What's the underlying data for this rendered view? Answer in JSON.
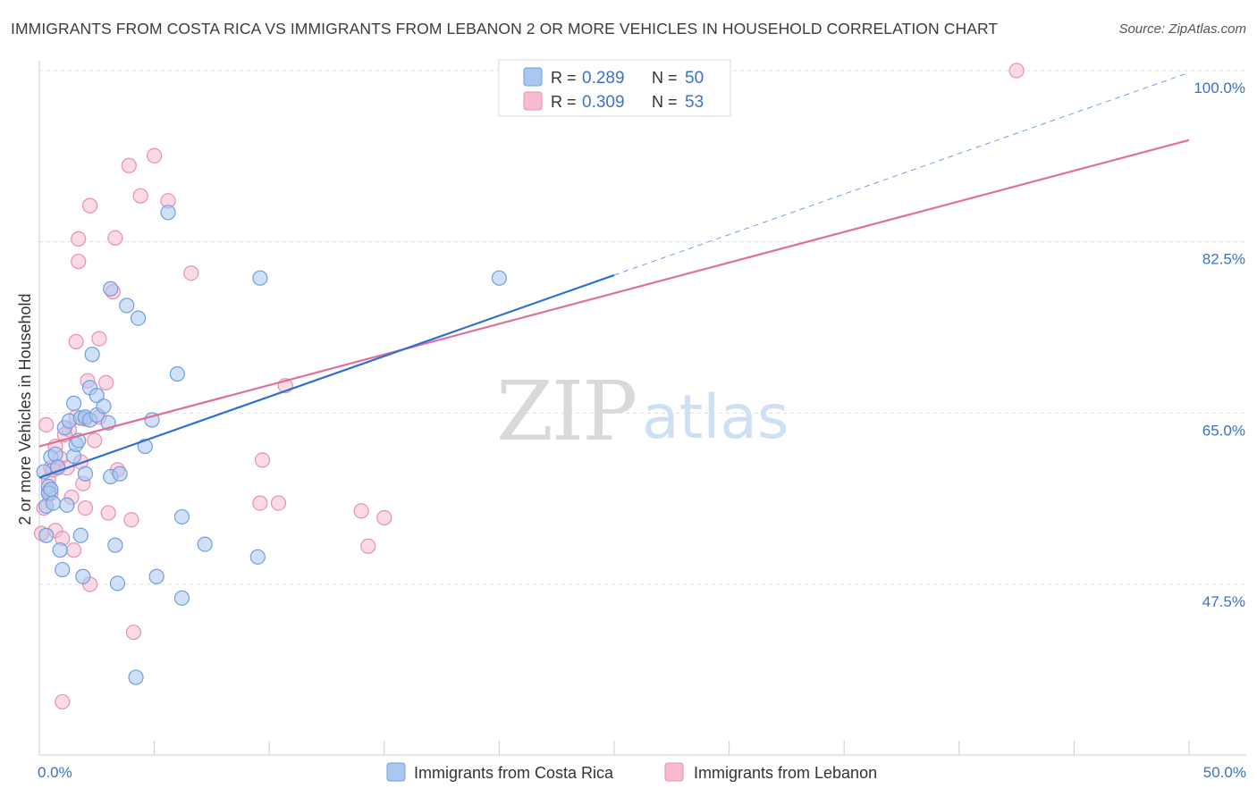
{
  "title": "IMMIGRANTS FROM COSTA RICA VS IMMIGRANTS FROM LEBANON 2 OR MORE VEHICLES IN HOUSEHOLD CORRELATION CHART",
  "source": "Source: ZipAtlas.com",
  "watermark": {
    "zip": "ZIP",
    "atlas": "atlas"
  },
  "colors": {
    "blue_fill": "#a9c8f0",
    "blue_stroke": "#6f9fe0",
    "blue_line": "#2f6fd0",
    "pink_fill": "#f6bccd",
    "pink_stroke": "#ea90ac",
    "pink_line": "#e0709a",
    "grid": "#dddddd",
    "tick_text": "#3b72c4"
  },
  "legend": {
    "rows": [
      {
        "r_label": "R =",
        "r_value": "0.289",
        "n_label": "N =",
        "n_value": "50"
      },
      {
        "r_label": "R =",
        "r_value": "0.309",
        "n_label": "N =",
        "n_value": "53"
      }
    ]
  },
  "chart_data": {
    "type": "scatter",
    "title": "IMMIGRANTS FROM COSTA RICA VS IMMIGRANTS FROM LEBANON 2 OR MORE VEHICLES IN HOUSEHOLD CORRELATION CHART",
    "xlabel": "",
    "ylabel": "2 or more Vehicles in Household",
    "xlim": [
      0,
      50
    ],
    "ylim": [
      30.5,
      102
    ],
    "x_tick_labels": [
      "0.0%",
      "50.0%"
    ],
    "y_ticks": [
      47.5,
      65.0,
      82.5,
      100.0
    ],
    "y_tick_labels": [
      "47.5%",
      "65.0%",
      "82.5%",
      "100.0%"
    ],
    "grid": true,
    "legend_position": "bottom-center",
    "series": [
      {
        "name": "Immigrants from Costa Rica",
        "color": "#6f9fe0",
        "R": 0.289,
        "N": 50,
        "trend": {
          "x0": 0,
          "y0": 58.4,
          "x1": 25,
          "y1": 79.1,
          "dashed_to_x": 50,
          "dashed_to_y": 99.8
        },
        "points": [
          [
            0.3,
            52.5
          ],
          [
            0.3,
            55.5
          ],
          [
            0.4,
            57.5
          ],
          [
            0.4,
            56.8
          ],
          [
            0.5,
            57.2
          ],
          [
            0.5,
            60.5
          ],
          [
            0.6,
            55.8
          ],
          [
            0.7,
            60.8
          ],
          [
            0.8,
            59.5
          ],
          [
            0.9,
            51
          ],
          [
            1,
            49
          ],
          [
            1.1,
            63.5
          ],
          [
            1.2,
            55.6
          ],
          [
            1.3,
            64.2
          ],
          [
            1.5,
            66
          ],
          [
            1.5,
            60.6
          ],
          [
            1.6,
            61.8
          ],
          [
            1.7,
            62.2
          ],
          [
            1.8,
            52.5
          ],
          [
            1.8,
            64.5
          ],
          [
            1.9,
            48.3
          ],
          [
            2,
            58.8
          ],
          [
            2,
            64.6
          ],
          [
            2.2,
            64.3
          ],
          [
            2.2,
            67.6
          ],
          [
            2.3,
            71
          ],
          [
            2.5,
            66.8
          ],
          [
            2.5,
            64.8
          ],
          [
            2.8,
            65.7
          ],
          [
            3,
            64
          ],
          [
            3.1,
            58.5
          ],
          [
            3.1,
            77.7
          ],
          [
            3.3,
            51.5
          ],
          [
            3.4,
            47.6
          ],
          [
            3.5,
            58.8
          ],
          [
            3.8,
            76
          ],
          [
            4.2,
            38
          ],
          [
            4.3,
            74.7
          ],
          [
            4.6,
            61.6
          ],
          [
            4.9,
            64.3
          ],
          [
            5.1,
            48.3
          ],
          [
            5.6,
            85.5
          ],
          [
            6,
            69
          ],
          [
            6.2,
            54.4
          ],
          [
            6.2,
            46.1
          ],
          [
            7.2,
            51.6
          ],
          [
            9.5,
            50.3
          ],
          [
            9.6,
            78.8
          ],
          [
            20,
            78.8
          ],
          [
            0.2,
            59
          ]
        ]
      },
      {
        "name": "Immigrants from Lebanon",
        "color": "#ea90ac",
        "R": 0.309,
        "N": 53,
        "trend": {
          "x0": 0,
          "y0": 61.6,
          "x1": 50,
          "y1": 92.9
        },
        "points": [
          [
            0.1,
            52.7
          ],
          [
            0.3,
            63.8
          ],
          [
            0.4,
            58.2
          ],
          [
            0.4,
            57
          ],
          [
            0.5,
            56.8
          ],
          [
            0.5,
            59.4
          ],
          [
            0.6,
            59.2
          ],
          [
            0.7,
            61.6
          ],
          [
            0.7,
            53
          ],
          [
            0.8,
            59.4
          ],
          [
            0.9,
            60.4
          ],
          [
            1,
            52.2
          ],
          [
            1,
            35.5
          ],
          [
            1.2,
            59.4
          ],
          [
            1.3,
            63.3
          ],
          [
            1.4,
            56.4
          ],
          [
            1.5,
            51
          ],
          [
            1.6,
            64.6
          ],
          [
            1.6,
            72.3
          ],
          [
            1.7,
            80.5
          ],
          [
            1.7,
            82.8
          ],
          [
            1.8,
            60
          ],
          [
            1.9,
            57.8
          ],
          [
            2,
            64.4
          ],
          [
            2,
            55.3
          ],
          [
            2.1,
            68.3
          ],
          [
            2.2,
            86.2
          ],
          [
            2.2,
            47.5
          ],
          [
            2.6,
            72.6
          ],
          [
            2.6,
            64.6
          ],
          [
            2.9,
            68.1
          ],
          [
            3,
            54.8
          ],
          [
            3.2,
            77.4
          ],
          [
            3.3,
            82.9
          ],
          [
            3.4,
            59.2
          ],
          [
            3.9,
            90.3
          ],
          [
            4,
            54.1
          ],
          [
            4.1,
            42.6
          ],
          [
            4.4,
            87.2
          ],
          [
            5,
            91.3
          ],
          [
            5.6,
            86.7
          ],
          [
            6.6,
            79.3
          ],
          [
            9.6,
            55.8
          ],
          [
            9.7,
            60.2
          ],
          [
            10.4,
            55.8
          ],
          [
            10.7,
            67.8
          ],
          [
            14,
            55
          ],
          [
            14.3,
            51.4
          ],
          [
            15,
            54.3
          ],
          [
            42.5,
            100
          ],
          [
            0.2,
            55.3
          ],
          [
            1.1,
            62.8
          ],
          [
            2.4,
            62.2
          ]
        ]
      }
    ]
  }
}
